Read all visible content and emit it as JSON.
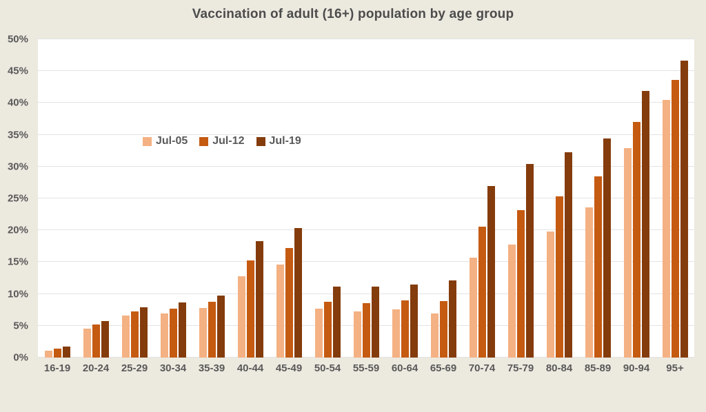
{
  "title": "Vaccination of adult (16+) population by age group",
  "colors": {
    "page_background": "#ece9df",
    "plot_background": "#ffffff",
    "gridline": "#e3e3e3",
    "text": "#595959",
    "title_text": "#4c4c4c",
    "series": [
      "#F4B183",
      "#C55A11",
      "#843C0C"
    ]
  },
  "chart_data": {
    "type": "bar",
    "title": "Vaccination of adult (16+) population by age group",
    "categories": [
      "16-19",
      "20-24",
      "25-29",
      "30-34",
      "35-39",
      "40-44",
      "45-49",
      "50-54",
      "55-59",
      "60-64",
      "65-69",
      "70-74",
      "75-79",
      "80-84",
      "85-89",
      "90-94",
      "95+"
    ],
    "series": [
      {
        "name": "Jul-05",
        "color": "#F4B183",
        "values": [
          1.1,
          4.6,
          6.6,
          6.9,
          7.8,
          12.8,
          14.6,
          7.7,
          7.3,
          7.6,
          6.9,
          15.7,
          17.7,
          19.8,
          23.6,
          32.9,
          40.5
        ]
      },
      {
        "name": "Jul-12",
        "color": "#C55A11",
        "values": [
          1.4,
          5.2,
          7.2,
          7.7,
          8.8,
          15.3,
          17.2,
          8.8,
          8.6,
          9.0,
          8.9,
          20.6,
          23.2,
          25.3,
          28.5,
          37.0,
          43.6
        ]
      },
      {
        "name": "Jul-19",
        "color": "#843C0C",
        "values": [
          1.7,
          5.7,
          7.9,
          8.7,
          9.7,
          18.3,
          20.3,
          11.1,
          11.1,
          11.5,
          12.1,
          27.0,
          30.4,
          32.2,
          34.4,
          41.9,
          46.7
        ]
      }
    ],
    "xlabel": "",
    "ylabel": "",
    "ytick_labels": [
      "0%",
      "5%",
      "10%",
      "15%",
      "20%",
      "25%",
      "30%",
      "35%",
      "40%",
      "45%",
      "50%"
    ],
    "ylim": [
      0,
      50
    ],
    "grid": "horizontal",
    "legend_position": "inside-upper-left"
  }
}
